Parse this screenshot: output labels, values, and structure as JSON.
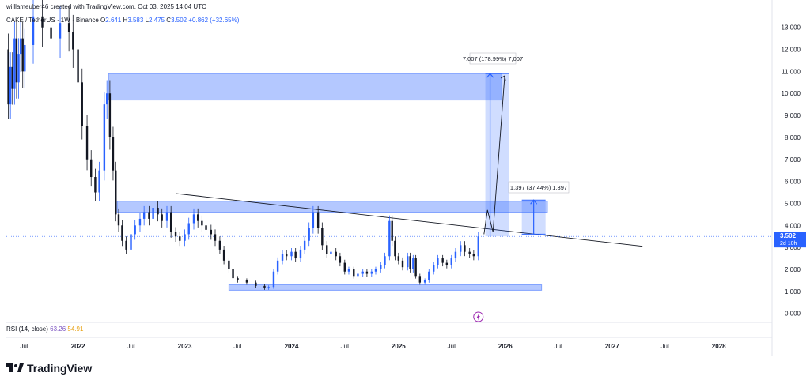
{
  "header": {
    "credit": "willlameuber46 created with TradingView.com, Oct 03, 2025 14:04 UTC",
    "symbol": "CAKE / TetherUS · 1W · Binance",
    "open_label": "O",
    "open": "2.641",
    "high_label": "H",
    "high": "3.583",
    "low_label": "L",
    "low": "2.475",
    "close_label": "C",
    "close": "3.502",
    "change": "+0.862 (+32.65%)"
  },
  "rsi": {
    "label": "RSI (14, close)",
    "value1": "63.26",
    "value2": "54.91"
  },
  "logo": {
    "text": "TradingView"
  },
  "colors": {
    "up": "#2962ff",
    "down": "#131722",
    "zone": "#2962ff",
    "price_tag": "#2962ff",
    "trendline": "#131722",
    "rsi_line": "#7e57c2",
    "rsi_ma": "#e8a317"
  },
  "chart_data": {
    "type": "candlestick",
    "title": "CAKE / TetherUS · 1W · Binance",
    "y_ticks": [
      0,
      1,
      2,
      3,
      4,
      5,
      6,
      7,
      8,
      9,
      10,
      11,
      12,
      13
    ],
    "y_tick_labels": [
      "0.000",
      "1.000",
      "2.000",
      "3.000",
      "4.000",
      "5.000",
      "6.000",
      "7.000",
      "8.000",
      "9.000",
      "10.000",
      "11.000",
      "12.000",
      "13.000"
    ],
    "ylim": [
      -0.3,
      13.6
    ],
    "xlim": [
      "2021-05-01",
      "2028-07-01"
    ],
    "x_ticks": [
      {
        "label": "Jul",
        "date": "2021-07-01"
      },
      {
        "label": "2022",
        "date": "2022-01-01"
      },
      {
        "label": "Jul",
        "date": "2022-07-01"
      },
      {
        "label": "2023",
        "date": "2023-01-01"
      },
      {
        "label": "Jul",
        "date": "2023-07-01"
      },
      {
        "label": "2024",
        "date": "2024-01-01"
      },
      {
        "label": "Jul",
        "date": "2024-07-01"
      },
      {
        "label": "2025",
        "date": "2025-01-01"
      },
      {
        "label": "Jul",
        "date": "2025-07-01"
      },
      {
        "label": "2026",
        "date": "2026-01-01"
      },
      {
        "label": "Jul",
        "date": "2026-07-01"
      },
      {
        "label": "2027",
        "date": "2027-01-01"
      },
      {
        "label": "Jul",
        "date": "2027-07-01"
      },
      {
        "label": "2028",
        "date": "2028-01-01"
      }
    ],
    "price_series": [
      [
        "2021-05-01",
        12.0
      ],
      [
        "2021-05-08",
        9.5
      ],
      [
        "2021-05-15",
        11.2
      ],
      [
        "2021-05-22",
        10.2
      ],
      [
        "2021-05-29",
        12.5
      ],
      [
        "2021-06-05",
        10.5
      ],
      [
        "2021-06-12",
        11.8
      ],
      [
        "2021-06-19",
        12.5
      ],
      [
        "2021-06-26",
        11.0
      ],
      [
        "2021-07-03",
        12.2
      ],
      [
        "2021-08-01",
        13.5
      ],
      [
        "2021-09-01",
        13.0
      ],
      [
        "2021-10-01",
        12.5
      ],
      [
        "2021-11-01",
        13.2
      ],
      [
        "2021-12-01",
        12.8
      ],
      [
        "2021-12-15",
        12.0
      ],
      [
        "2022-01-01",
        10.5
      ],
      [
        "2022-01-15",
        8.5
      ],
      [
        "2022-02-01",
        7.0
      ],
      [
        "2022-02-15",
        6.2
      ],
      [
        "2022-03-01",
        5.5
      ],
      [
        "2022-03-15",
        6.5
      ],
      [
        "2022-04-01",
        9.5
      ],
      [
        "2022-04-10",
        10.0
      ],
      [
        "2022-04-20",
        8.0
      ],
      [
        "2022-05-01",
        6.5
      ],
      [
        "2022-05-10",
        4.5
      ],
      [
        "2022-05-20",
        4.0
      ],
      [
        "2022-06-01",
        3.3
      ],
      [
        "2022-06-15",
        2.9
      ],
      [
        "2022-07-01",
        3.6
      ],
      [
        "2022-07-15",
        4.0
      ],
      [
        "2022-08-01",
        4.3
      ],
      [
        "2022-08-15",
        4.6
      ],
      [
        "2022-09-01",
        4.3
      ],
      [
        "2022-09-15",
        4.8
      ],
      [
        "2022-10-01",
        4.5
      ],
      [
        "2022-10-15",
        4.2
      ],
      [
        "2022-11-01",
        4.6
      ],
      [
        "2022-11-15",
        3.7
      ],
      [
        "2022-12-01",
        3.5
      ],
      [
        "2022-12-15",
        3.3
      ],
      [
        "2023-01-01",
        3.6
      ],
      [
        "2023-01-15",
        4.1
      ],
      [
        "2023-02-01",
        4.5
      ],
      [
        "2023-02-15",
        4.2
      ],
      [
        "2023-03-01",
        4.0
      ],
      [
        "2023-03-15",
        3.8
      ],
      [
        "2023-04-01",
        3.6
      ],
      [
        "2023-04-15",
        3.3
      ],
      [
        "2023-05-01",
        2.9
      ],
      [
        "2023-05-15",
        2.4
      ],
      [
        "2023-06-01",
        2.0
      ],
      [
        "2023-06-15",
        1.6
      ],
      [
        "2023-07-01",
        1.5
      ],
      [
        "2023-08-01",
        1.4
      ],
      [
        "2023-09-01",
        1.25
      ],
      [
        "2023-10-01",
        1.15
      ],
      [
        "2023-10-15",
        1.2
      ],
      [
        "2023-11-01",
        1.9
      ],
      [
        "2023-11-15",
        2.4
      ],
      [
        "2023-12-01",
        2.7
      ],
      [
        "2023-12-15",
        2.6
      ],
      [
        "2024-01-01",
        2.8
      ],
      [
        "2024-01-15",
        2.5
      ],
      [
        "2024-02-01",
        2.9
      ],
      [
        "2024-02-15",
        3.3
      ],
      [
        "2024-03-01",
        3.9
      ],
      [
        "2024-03-15",
        4.6
      ],
      [
        "2024-04-01",
        3.9
      ],
      [
        "2024-04-15",
        3.1
      ],
      [
        "2024-05-01",
        2.7
      ],
      [
        "2024-05-15",
        2.8
      ],
      [
        "2024-06-01",
        2.6
      ],
      [
        "2024-06-15",
        2.3
      ],
      [
        "2024-07-01",
        1.9
      ],
      [
        "2024-07-15",
        2.0
      ],
      [
        "2024-08-01",
        1.7
      ],
      [
        "2024-08-15",
        1.8
      ],
      [
        "2024-09-01",
        1.9
      ],
      [
        "2024-09-15",
        1.8
      ],
      [
        "2024-10-01",
        1.9
      ],
      [
        "2024-10-15",
        2.0
      ],
      [
        "2024-11-01",
        2.2
      ],
      [
        "2024-11-15",
        2.6
      ],
      [
        "2024-12-01",
        4.2
      ],
      [
        "2024-12-10",
        3.3
      ],
      [
        "2024-12-20",
        2.6
      ],
      [
        "2025-01-01",
        2.4
      ],
      [
        "2025-01-15",
        2.1
      ],
      [
        "2025-02-01",
        2.6
      ],
      [
        "2025-02-10",
        2.0
      ],
      [
        "2025-02-20",
        2.5
      ],
      [
        "2025-03-01",
        1.7
      ],
      [
        "2025-03-15",
        1.4
      ],
      [
        "2025-04-01",
        1.5
      ],
      [
        "2025-04-15",
        1.9
      ],
      [
        "2025-05-01",
        2.2
      ],
      [
        "2025-05-15",
        2.5
      ],
      [
        "2025-06-01",
        2.3
      ],
      [
        "2025-06-15",
        2.2
      ],
      [
        "2025-07-01",
        2.5
      ],
      [
        "2025-07-15",
        2.8
      ],
      [
        "2025-08-01",
        3.1
      ],
      [
        "2025-08-15",
        2.8
      ],
      [
        "2025-09-01",
        2.7
      ],
      [
        "2025-09-15",
        2.6
      ],
      [
        "2025-10-01",
        3.5
      ]
    ],
    "zones": [
      {
        "from": "2022-04-15",
        "to": "2025-12-20",
        "low": 9.7,
        "high": 10.9
      },
      {
        "from": "2022-05-15",
        "to": "2026-05-25",
        "low": 4.6,
        "high": 5.1
      },
      {
        "from": "2023-06-01",
        "to": "2026-05-05",
        "low": 1.05,
        "high": 1.3
      }
    ],
    "trendline": {
      "from": [
        "2022-12-01",
        5.45
      ],
      "to": [
        "2027-04-15",
        3.05
      ]
    },
    "current_price_line": 3.502,
    "price_tag": {
      "value": "3.502",
      "countdown": "2d 10h",
      "y": 3.502
    },
    "measure_1": {
      "x": "2025-11-10",
      "from": 3.5,
      "to": 10.9,
      "label": "7.007 (178.99%) 7,007"
    },
    "measure_2": {
      "x": "2026-04-08",
      "from": 3.6,
      "to": 5.15,
      "label": "1.397 (37.44%) 1,397"
    },
    "projection_path": [
      [
        "2025-10-20",
        3.6
      ],
      [
        "2025-11-01",
        4.7
      ],
      [
        "2025-11-20",
        3.7
      ],
      [
        "2025-12-30",
        10.8
      ]
    ],
    "rsi_marker_date": "2025-10-01"
  }
}
